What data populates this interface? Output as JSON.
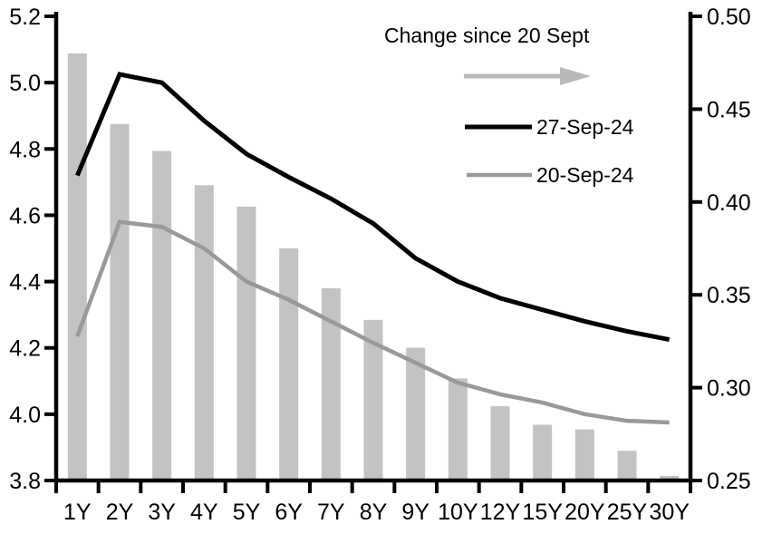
{
  "chart_data": {
    "type": "combo",
    "categories": [
      "1Y",
      "2Y",
      "3Y",
      "4Y",
      "5Y",
      "6Y",
      "7Y",
      "8Y",
      "9Y",
      "10Y",
      "12Y",
      "15Y",
      "20Y",
      "25Y",
      "30Y"
    ],
    "series": [
      {
        "name": "Change since 20 Sept",
        "kind": "bar",
        "axis": "right",
        "color": "#c3c3c3",
        "values": [
          0.48,
          0.442,
          0.4275,
          0.409,
          0.3975,
          0.375,
          0.3535,
          0.3365,
          0.3215,
          0.305,
          0.29,
          0.28,
          0.2775,
          0.266,
          0.2525
        ]
      },
      {
        "name": "27-Sep-24",
        "kind": "line",
        "axis": "left",
        "color": "#000000",
        "stroke_width": 5,
        "values": [
          4.72,
          5.025,
          5.0,
          4.885,
          4.785,
          4.715,
          4.65,
          4.575,
          4.47,
          4.4,
          4.35,
          4.315,
          4.28,
          4.25,
          4.225
        ]
      },
      {
        "name": "20-Sep-24",
        "kind": "line",
        "axis": "left",
        "color": "#999999",
        "stroke_width": 4.5,
        "values": [
          4.235,
          4.58,
          4.565,
          4.5,
          4.4,
          4.345,
          4.28,
          4.215,
          4.155,
          4.095,
          4.06,
          4.035,
          4.0,
          3.98,
          3.975
        ]
      }
    ],
    "axes": {
      "left": {
        "min": 3.8,
        "max": 5.2,
        "tick_labels": [
          "5.2",
          "5.0",
          "4.8",
          "4.6",
          "4.4",
          "4.2",
          "4.0",
          "3.8"
        ]
      },
      "right": {
        "min": 0.25,
        "max": 0.5,
        "tick_labels": [
          "0.50",
          "0.45",
          "0.40",
          "0.35",
          "0.30",
          "0.25"
        ]
      }
    },
    "legend": {
      "arrow_label": "Change since 20 Sept",
      "arrow_color": "#b9b9b9",
      "entries": [
        {
          "label": "27-Sep-24",
          "color": "#000000"
        },
        {
          "label": "20-Sep-24",
          "color": "#999999"
        }
      ]
    },
    "grid": false,
    "background": "#ffffff",
    "legend_position": "top-right-inside"
  }
}
